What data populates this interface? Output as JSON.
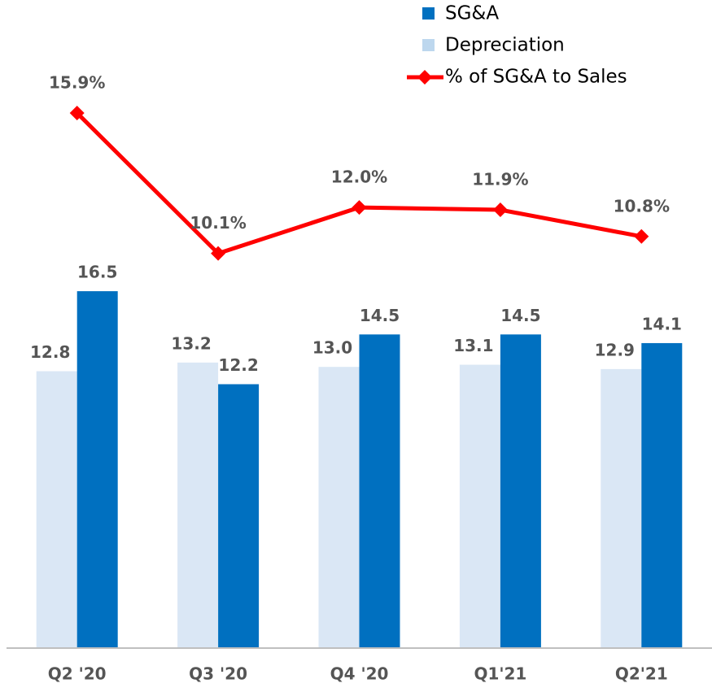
{
  "chart_data": {
    "type": "bar_line",
    "categories": [
      "Q2 '20",
      "Q3 '20",
      "Q4 '20",
      "Q1'21",
      "Q2'21"
    ],
    "ylim": [
      0,
      30
    ],
    "y2lim": [
      -6.2,
      20.6
    ],
    "series": [
      {
        "name": "Depreciation",
        "color": "#dae7f5",
        "type": "bar",
        "values": [
          12.8,
          13.2,
          13.0,
          13.1,
          12.9
        ],
        "value_labels": [
          "12.8",
          "13.2",
          "13.0",
          "13.1",
          "12.9"
        ]
      },
      {
        "name": "SG&A",
        "color": "#0070c0",
        "type": "bar",
        "values": [
          16.5,
          12.2,
          14.5,
          14.5,
          14.1
        ],
        "value_labels": [
          "16.5",
          "12.2",
          "14.5",
          "14.5",
          "14.1"
        ]
      },
      {
        "name": "% of SG&A to Sales",
        "color": "#ff0000",
        "type": "line",
        "axis": "y2",
        "values": [
          15.9,
          10.1,
          12.0,
          11.9,
          10.8
        ],
        "value_labels": [
          "15.9%",
          "10.1%",
          "12.0%",
          "11.9%",
          "10.8%"
        ]
      }
    ],
    "legend": "top-right"
  }
}
